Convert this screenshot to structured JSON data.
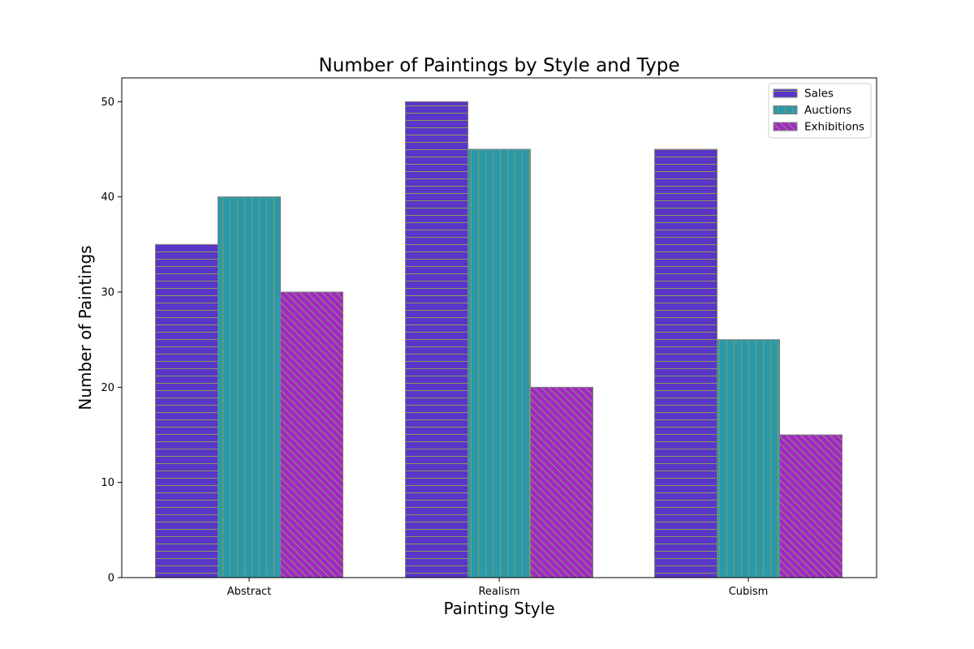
{
  "chart_data": {
    "type": "bar",
    "title": "Number of Paintings by Style and Type",
    "xlabel": "Painting Style",
    "ylabel": "Number of Paintings",
    "categories": [
      "Abstract",
      "Realism",
      "Cubism"
    ],
    "series": [
      {
        "name": "Sales",
        "values": [
          35,
          50,
          45
        ],
        "color": "#5a35c8",
        "hatch": "horizontal"
      },
      {
        "name": "Auctions",
        "values": [
          40,
          45,
          25
        ],
        "color": "#2a9aab",
        "hatch": "vertical"
      },
      {
        "name": "Exhibitions",
        "values": [
          30,
          20,
          15
        ],
        "color": "#a227c8",
        "hatch": "diagonal"
      }
    ],
    "yticks": [
      0,
      10,
      20,
      30,
      40,
      50
    ],
    "ylim": [
      0,
      52.5
    ],
    "grid": false,
    "legend_position": "top-right",
    "edge_color": "#808080",
    "hatch_color": "#8a9a5a"
  }
}
